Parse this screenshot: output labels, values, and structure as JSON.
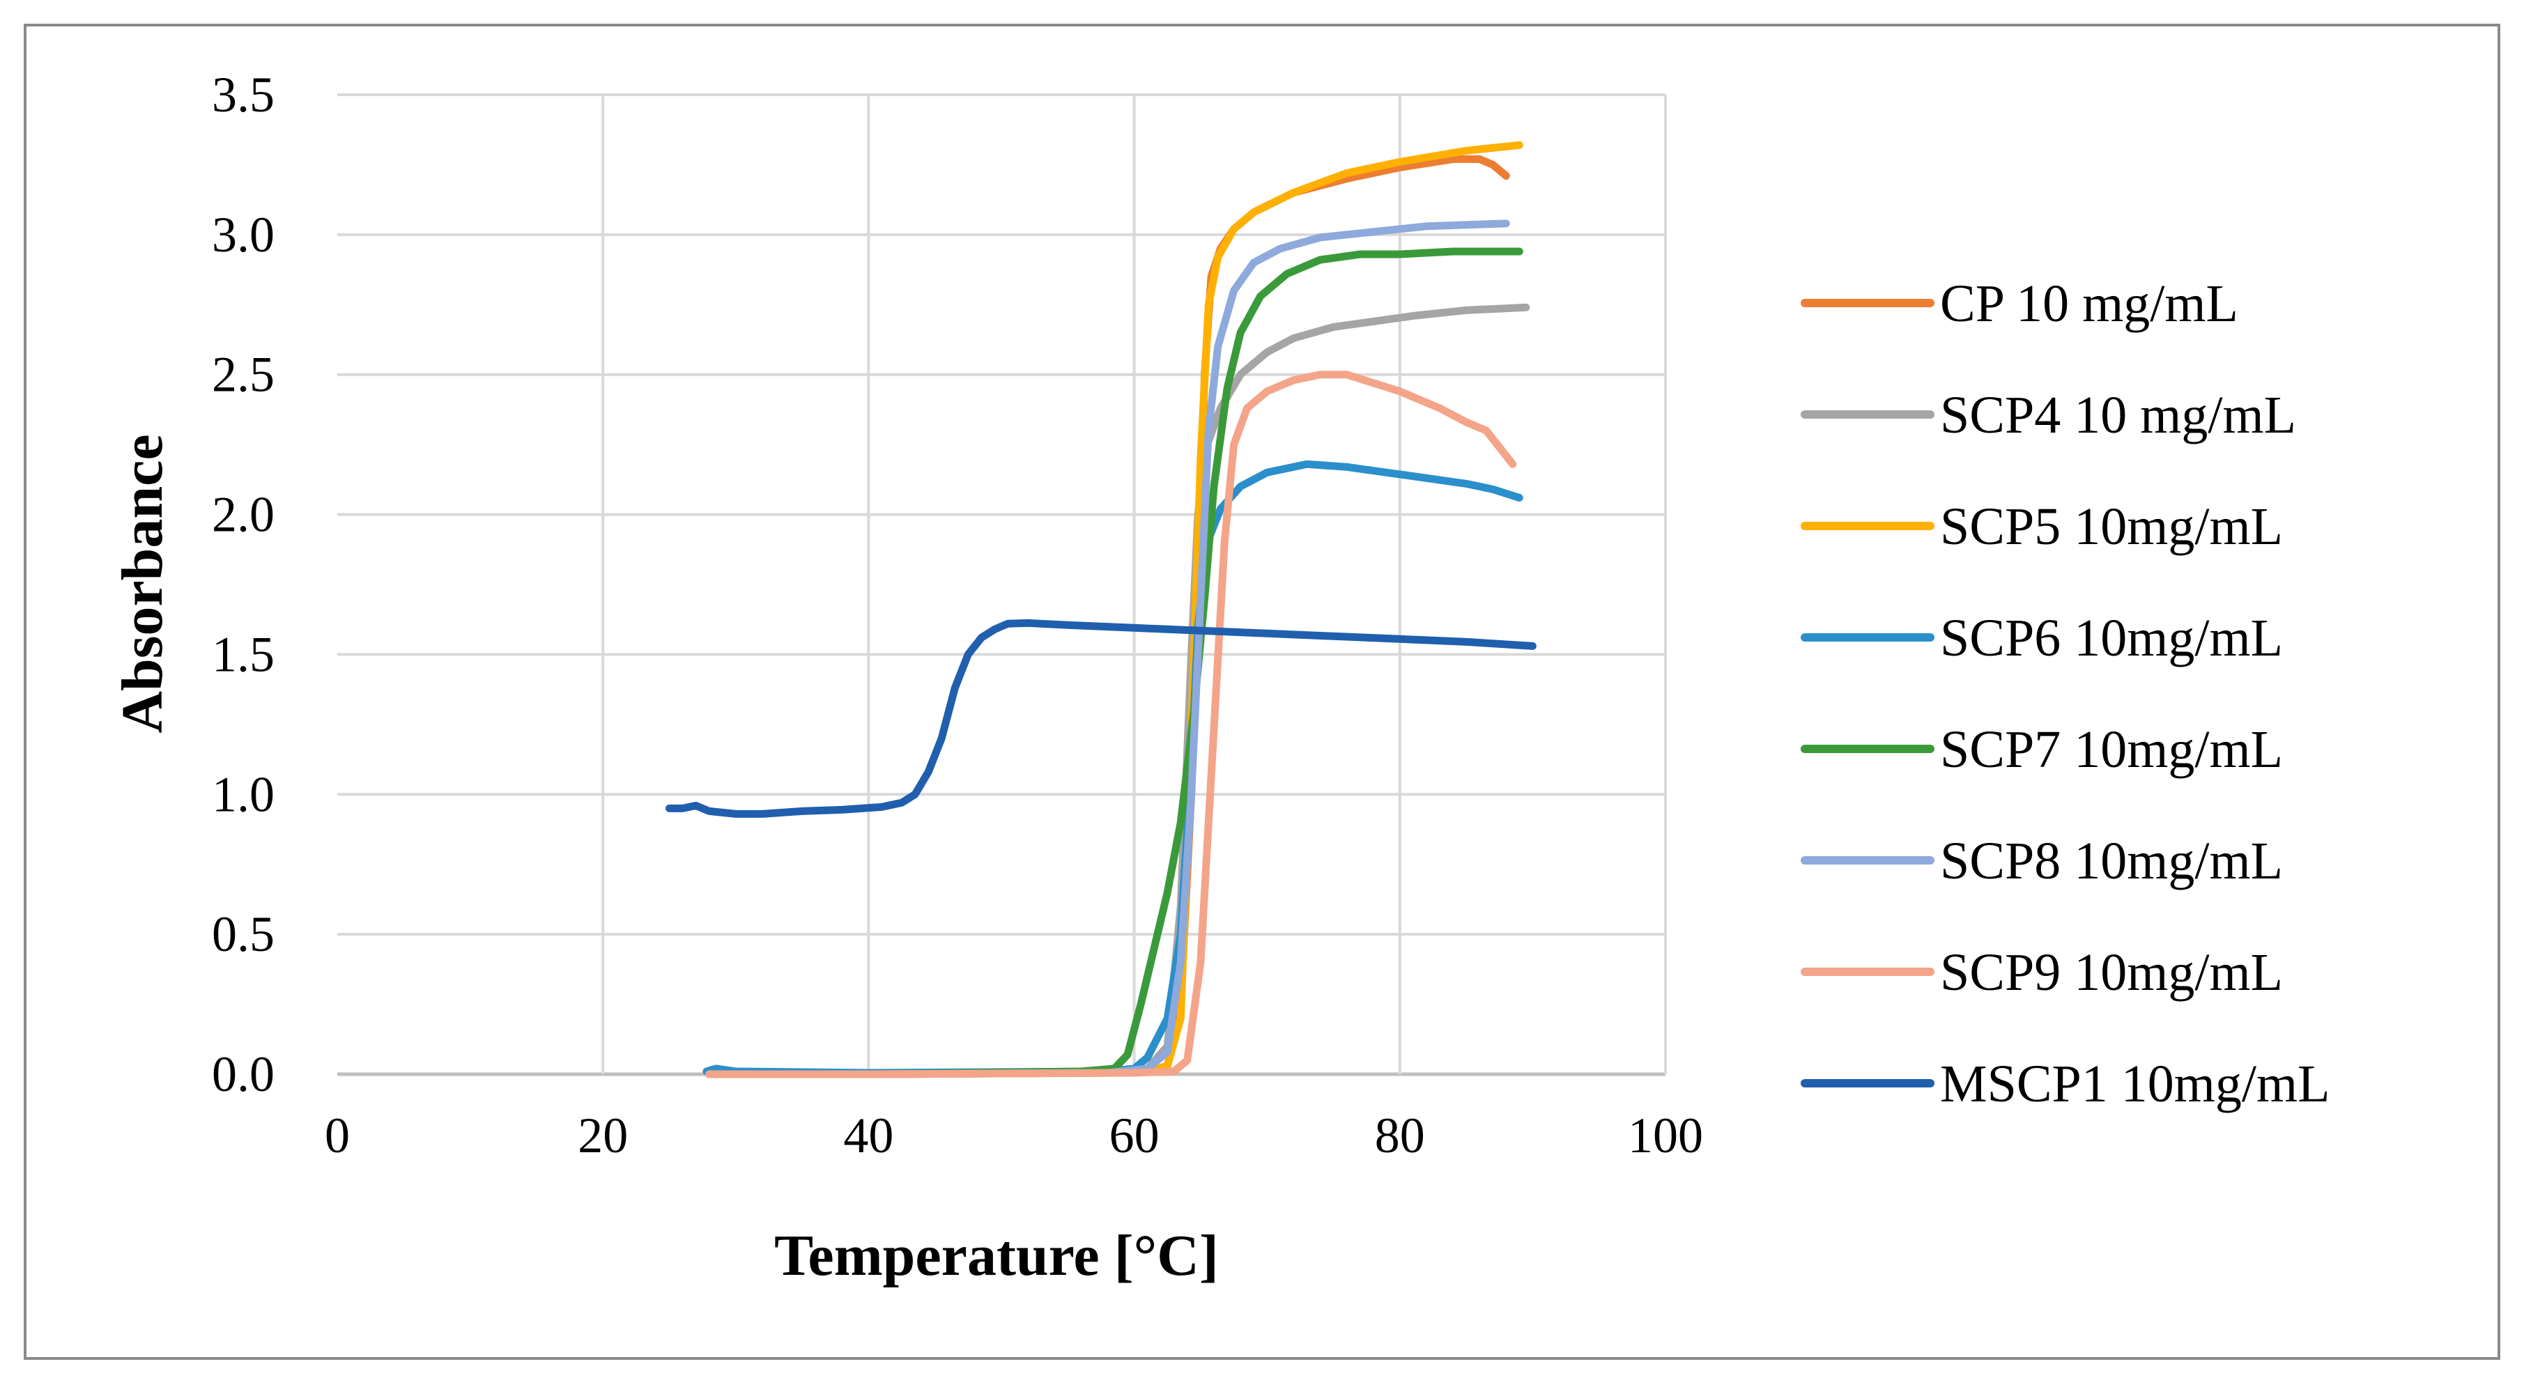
{
  "chart_data": {
    "type": "line",
    "title": "",
    "xlabel": "Temperature [°C]",
    "ylabel": "Absorbance",
    "xlim": [
      0,
      100
    ],
    "ylim": [
      0,
      3.5
    ],
    "xticks": [
      0,
      20,
      40,
      60,
      80,
      100
    ],
    "xtick_labels": [
      "0",
      "20",
      "40",
      "60",
      "80",
      "100"
    ],
    "yticks": [
      0,
      0.5,
      1,
      1.5,
      2,
      2.5,
      3,
      3.5
    ],
    "ytick_labels": [
      "0.0",
      "0.5",
      "1.0",
      "1.5",
      "2.0",
      "2.5",
      "3.0",
      "3.5"
    ],
    "grid": true,
    "legend_position": "right",
    "series": [
      {
        "name": "CP 10 mg/mL",
        "color": "#ED7D31",
        "points": [
          [
            28,
            0
          ],
          [
            40,
            0
          ],
          [
            58,
            0.005
          ],
          [
            61,
            0.01
          ],
          [
            62.5,
            0.03
          ],
          [
            63.5,
            0.25
          ],
          [
            64.3,
            1.0
          ],
          [
            64.8,
            1.7
          ],
          [
            65.3,
            2.5
          ],
          [
            65.8,
            2.85
          ],
          [
            66.5,
            2.95
          ],
          [
            67.5,
            3.02
          ],
          [
            69,
            3.08
          ],
          [
            72,
            3.15
          ],
          [
            76,
            3.2
          ],
          [
            80,
            3.24
          ],
          [
            84,
            3.27
          ],
          [
            86,
            3.27
          ],
          [
            87,
            3.25
          ],
          [
            88,
            3.21
          ]
        ]
      },
      {
        "name": "SCP4 10 mg/mL",
        "color": "#A5A5A5",
        "points": [
          [
            28,
            0
          ],
          [
            40,
            0
          ],
          [
            58,
            0.005
          ],
          [
            61,
            0.02
          ],
          [
            62.5,
            0.1
          ],
          [
            63.5,
            0.6
          ],
          [
            64.3,
            1.5
          ],
          [
            64.8,
            2.0
          ],
          [
            65.5,
            2.25
          ],
          [
            66.5,
            2.38
          ],
          [
            68,
            2.5
          ],
          [
            70,
            2.58
          ],
          [
            72,
            2.63
          ],
          [
            75,
            2.67
          ],
          [
            78,
            2.69
          ],
          [
            81,
            2.71
          ],
          [
            85,
            2.73
          ],
          [
            89.5,
            2.74
          ]
        ]
      },
      {
        "name": "SCP5 10mg/mL",
        "color": "#FFB000",
        "points": [
          [
            28,
            0
          ],
          [
            40,
            0
          ],
          [
            58,
            0.005
          ],
          [
            61,
            0.01
          ],
          [
            62.5,
            0.03
          ],
          [
            63.5,
            0.2
          ],
          [
            64,
            0.8
          ],
          [
            64.5,
            1.5
          ],
          [
            65,
            2.2
          ],
          [
            65.6,
            2.75
          ],
          [
            66.3,
            2.92
          ],
          [
            67.5,
            3.02
          ],
          [
            69,
            3.08
          ],
          [
            72,
            3.15
          ],
          [
            76,
            3.22
          ],
          [
            80,
            3.26
          ],
          [
            85,
            3.3
          ],
          [
            89,
            3.32
          ]
        ]
      },
      {
        "name": "SCP6 10mg/mL",
        "color": "#2B8FCB",
        "points": [
          [
            27.8,
            0.01
          ],
          [
            28.5,
            0.02
          ],
          [
            30,
            0.01
          ],
          [
            40,
            0.005
          ],
          [
            58,
            0.01
          ],
          [
            60,
            0.02
          ],
          [
            61,
            0.06
          ],
          [
            62.5,
            0.2
          ],
          [
            63.5,
            0.5
          ],
          [
            64.3,
            1.1
          ],
          [
            64.8,
            1.6
          ],
          [
            65.5,
            1.9
          ],
          [
            66.5,
            2.02
          ],
          [
            68,
            2.1
          ],
          [
            70,
            2.15
          ],
          [
            73,
            2.18
          ],
          [
            76,
            2.17
          ],
          [
            79,
            2.15
          ],
          [
            82,
            2.13
          ],
          [
            85,
            2.11
          ],
          [
            87,
            2.09
          ],
          [
            89,
            2.06
          ]
        ]
      },
      {
        "name": "SCP7 10mg/mL",
        "color": "#3A9A3A",
        "points": [
          [
            28,
            0
          ],
          [
            40,
            0
          ],
          [
            56,
            0.01
          ],
          [
            58.5,
            0.02
          ],
          [
            59.5,
            0.07
          ],
          [
            60.5,
            0.25
          ],
          [
            61.5,
            0.45
          ],
          [
            62.5,
            0.65
          ],
          [
            63.5,
            0.9
          ],
          [
            64.5,
            1.3
          ],
          [
            65.3,
            1.7
          ],
          [
            66,
            2.1
          ],
          [
            67,
            2.45
          ],
          [
            68,
            2.65
          ],
          [
            69.5,
            2.78
          ],
          [
            71.5,
            2.86
          ],
          [
            74,
            2.91
          ],
          [
            77,
            2.93
          ],
          [
            80,
            2.93
          ],
          [
            84,
            2.94
          ],
          [
            89,
            2.94
          ]
        ]
      },
      {
        "name": "SCP8 10mg/mL",
        "color": "#8EA9DB",
        "points": [
          [
            28,
            0
          ],
          [
            40,
            0
          ],
          [
            58,
            0.005
          ],
          [
            61,
            0.02
          ],
          [
            62.5,
            0.08
          ],
          [
            63.5,
            0.4
          ],
          [
            64.3,
            1.0
          ],
          [
            65,
            1.7
          ],
          [
            65.6,
            2.3
          ],
          [
            66.3,
            2.6
          ],
          [
            67.5,
            2.8
          ],
          [
            69,
            2.9
          ],
          [
            71,
            2.95
          ],
          [
            74,
            2.99
          ],
          [
            78,
            3.01
          ],
          [
            82,
            3.03
          ],
          [
            88,
            3.04
          ]
        ]
      },
      {
        "name": "SCP9 10mg/mL",
        "color": "#F4A489",
        "points": [
          [
            28,
            0
          ],
          [
            40,
            0
          ],
          [
            60,
            0.005
          ],
          [
            63,
            0.01
          ],
          [
            64,
            0.05
          ],
          [
            65,
            0.4
          ],
          [
            65.6,
            0.9
          ],
          [
            66.2,
            1.4
          ],
          [
            66.8,
            1.9
          ],
          [
            67.5,
            2.25
          ],
          [
            68.5,
            2.38
          ],
          [
            70,
            2.44
          ],
          [
            72,
            2.48
          ],
          [
            74,
            2.5
          ],
          [
            76,
            2.5
          ],
          [
            78,
            2.47
          ],
          [
            80,
            2.44
          ],
          [
            83,
            2.38
          ],
          [
            85,
            2.33
          ],
          [
            86.5,
            2.3
          ],
          [
            87.5,
            2.24
          ],
          [
            88.5,
            2.18
          ]
        ]
      },
      {
        "name": "MSCP1 10mg/mL",
        "color": "#1F5FAD",
        "points": [
          [
            25,
            0.95
          ],
          [
            26,
            0.95
          ],
          [
            27,
            0.96
          ],
          [
            28,
            0.94
          ],
          [
            30,
            0.93
          ],
          [
            32,
            0.93
          ],
          [
            35,
            0.94
          ],
          [
            38,
            0.945
          ],
          [
            41,
            0.955
          ],
          [
            42.5,
            0.97
          ],
          [
            43.5,
            1.0
          ],
          [
            44.5,
            1.08
          ],
          [
            45.5,
            1.2
          ],
          [
            46.5,
            1.38
          ],
          [
            47.5,
            1.5
          ],
          [
            48.5,
            1.56
          ],
          [
            49.5,
            1.59
          ],
          [
            50.5,
            1.61
          ],
          [
            52,
            1.612
          ],
          [
            55,
            1.605
          ],
          [
            60,
            1.595
          ],
          [
            65,
            1.585
          ],
          [
            70,
            1.575
          ],
          [
            75,
            1.565
          ],
          [
            80,
            1.555
          ],
          [
            85,
            1.545
          ],
          [
            90,
            1.53
          ]
        ]
      }
    ]
  }
}
